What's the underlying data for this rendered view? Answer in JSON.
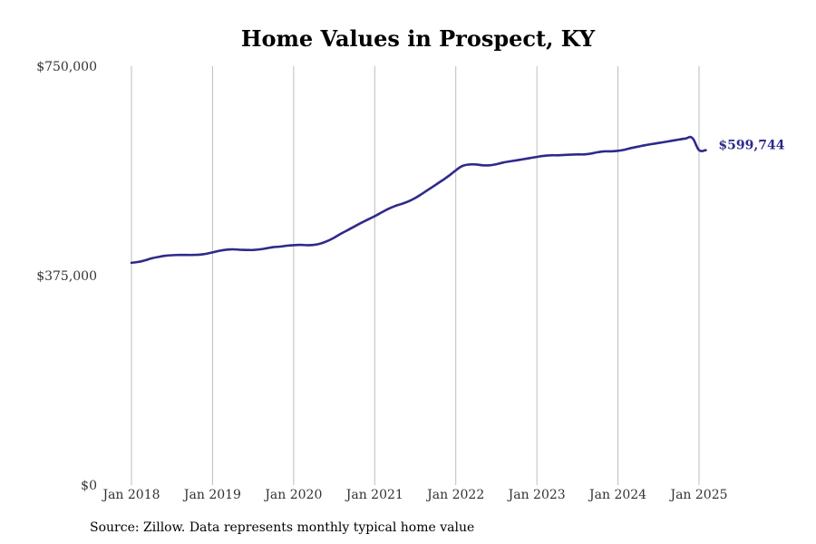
{
  "chart_data": {
    "type": "line",
    "title": "Home Values in Prospect, KY",
    "xlabel": "",
    "ylabel": "",
    "ylim": [
      0,
      750000
    ],
    "y_ticks": [
      {
        "value": 0,
        "label": "$0"
      },
      {
        "value": 375000,
        "label": "$375,000"
      },
      {
        "value": 750000,
        "label": "$750,000"
      }
    ],
    "x_ticks": [
      {
        "value": 2018.0,
        "label": "Jan 2018"
      },
      {
        "value": 2019.0,
        "label": "Jan 2019"
      },
      {
        "value": 2020.0,
        "label": "Jan 2020"
      },
      {
        "value": 2021.0,
        "label": "Jan 2021"
      },
      {
        "value": 2022.0,
        "label": "Jan 2022"
      },
      {
        "value": 2023.0,
        "label": "Jan 2023"
      },
      {
        "value": 2024.0,
        "label": "Jan 2024"
      },
      {
        "value": 2025.0,
        "label": "Jan 2025"
      }
    ],
    "xlim": [
      2018.0,
      2025.0
    ],
    "grid": "vertical",
    "line_color": "#2e2a8a",
    "series": [
      {
        "x": [
          2018.0,
          2018.083,
          2018.167,
          2018.25,
          2018.333,
          2018.417,
          2018.5,
          2018.583,
          2018.667,
          2018.75,
          2018.833,
          2018.917,
          2019.0,
          2019.083,
          2019.167,
          2019.25,
          2019.333,
          2019.417,
          2019.5,
          2019.583,
          2019.667,
          2019.75,
          2019.833,
          2019.917,
          2020.0,
          2020.083,
          2020.167,
          2020.25,
          2020.333,
          2020.417,
          2020.5,
          2020.583,
          2020.667,
          2020.75,
          2020.833,
          2020.917,
          2021.0,
          2021.083,
          2021.167,
          2021.25,
          2021.333,
          2021.417,
          2021.5,
          2021.583,
          2021.667,
          2021.75,
          2021.833,
          2021.917,
          2022.0,
          2022.083,
          2022.167,
          2022.25,
          2022.333,
          2022.417,
          2022.5,
          2022.583,
          2022.667,
          2022.75,
          2022.833,
          2022.917,
          2023.0,
          2023.083,
          2023.167,
          2023.25,
          2023.333,
          2023.417,
          2023.5,
          2023.583,
          2023.667,
          2023.75,
          2023.833,
          2023.917,
          2024.0,
          2024.083,
          2024.167,
          2024.25,
          2024.333,
          2024.417,
          2024.5,
          2024.583,
          2024.667,
          2024.75,
          2024.833,
          2024.917,
          2025.0,
          2025.083
        ],
        "values": [
          398000,
          399500,
          402500,
          406000,
          408500,
          410500,
          411500,
          412000,
          412000,
          412000,
          412500,
          414000,
          416500,
          419500,
          421500,
          422000,
          421500,
          421000,
          421000,
          422000,
          424000,
          426000,
          427000,
          428500,
          429500,
          430000,
          429500,
          430000,
          432500,
          437000,
          443000,
          450000,
          456500,
          463000,
          469500,
          475500,
          481500,
          488000,
          494500,
          499500,
          503500,
          508000,
          514000,
          521500,
          529500,
          537500,
          545500,
          554000,
          563500,
          571500,
          574000,
          574000,
          572500,
          572500,
          574500,
          577500,
          579500,
          581500,
          583500,
          585500,
          587500,
          589500,
          590500,
          590500,
          591000,
          591500,
          592000,
          592000,
          593500,
          596000,
          597500,
          597500,
          598500,
          600500,
          603500,
          606000,
          608500,
          610500,
          612500,
          614500,
          616500,
          618500,
          620500,
          621500,
          599744,
          599744
        ]
      }
    ],
    "end_label": "$599,744"
  },
  "footer": {
    "source": "Source: Zillow. Data represents monthly typical home value"
  }
}
